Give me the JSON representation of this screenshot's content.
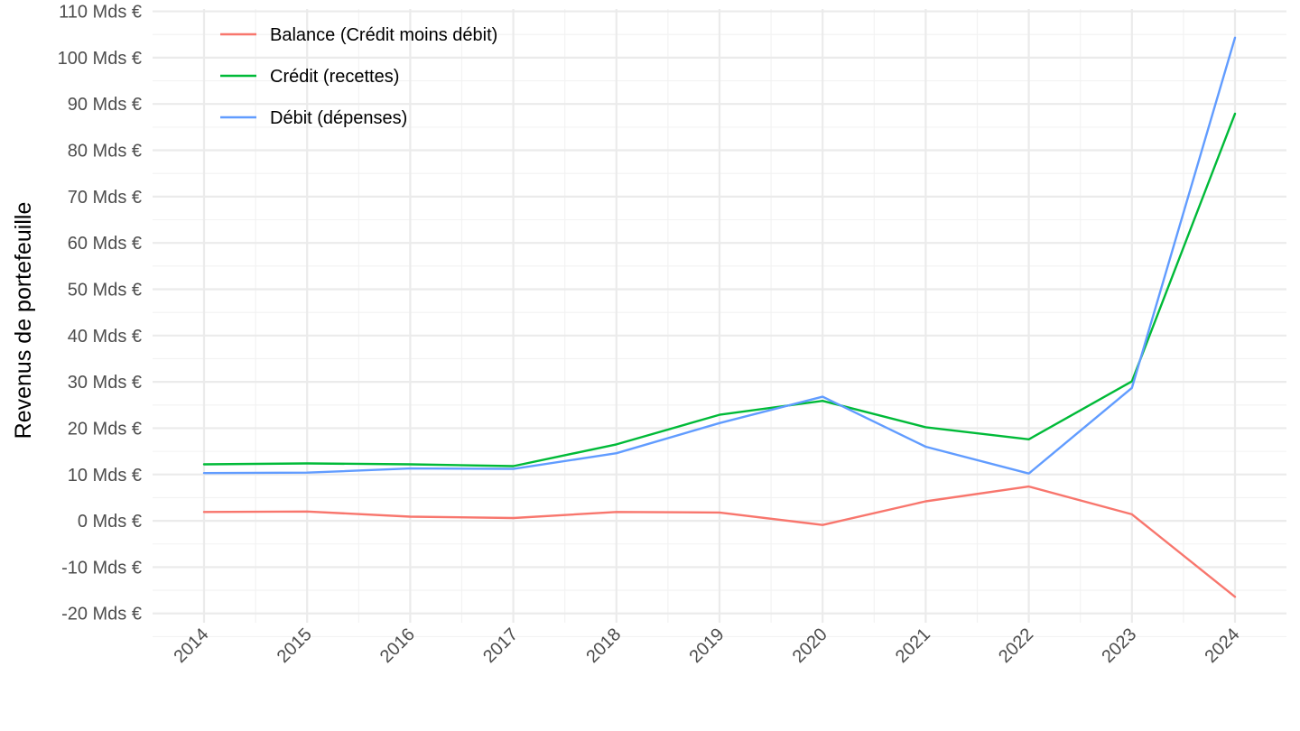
{
  "chart_data": {
    "type": "line",
    "ylabel": "Revenus de portefeuille",
    "xlabel": "",
    "x": [
      "2014",
      "2015",
      "2016",
      "2017",
      "2018",
      "2019",
      "2020",
      "2021",
      "2022",
      "2023",
      "2024"
    ],
    "y_ticks": [
      {
        "value": -20,
        "label": "-20 Mds €"
      },
      {
        "value": -10,
        "label": "-10 Mds €"
      },
      {
        "value": 0,
        "label": "0 Mds €"
      },
      {
        "value": 10,
        "label": "10 Mds €"
      },
      {
        "value": 20,
        "label": "20 Mds €"
      },
      {
        "value": 30,
        "label": "30 Mds €"
      },
      {
        "value": 40,
        "label": "40 Mds €"
      },
      {
        "value": 50,
        "label": "50 Mds €"
      },
      {
        "value": 60,
        "label": "60 Mds €"
      },
      {
        "value": 70,
        "label": "70 Mds €"
      },
      {
        "value": 80,
        "label": "80 Mds €"
      },
      {
        "value": 90,
        "label": "90 Mds €"
      },
      {
        "value": 100,
        "label": "100 Mds €"
      },
      {
        "value": 110,
        "label": "110 Mds €"
      }
    ],
    "ylim": [
      -22,
      110.5
    ],
    "grid": true,
    "legend": "top-left",
    "series": [
      {
        "name": "Balance (Crédit moins débit)",
        "color": "#F8766D",
        "values": [
          1.9,
          2.0,
          0.9,
          0.6,
          1.9,
          1.8,
          -0.9,
          4.2,
          7.4,
          1.4,
          -16.4
        ]
      },
      {
        "name": "Crédit (recettes)",
        "color": "#00BA38",
        "values": [
          12.2,
          12.4,
          12.2,
          11.8,
          16.5,
          22.9,
          25.9,
          20.2,
          17.6,
          30.1,
          87.9
        ]
      },
      {
        "name": "Débit (dépenses)",
        "color": "#619CFF",
        "values": [
          10.3,
          10.4,
          11.3,
          11.2,
          14.6,
          21.1,
          26.8,
          16.0,
          10.2,
          28.7,
          104.3
        ]
      }
    ]
  }
}
